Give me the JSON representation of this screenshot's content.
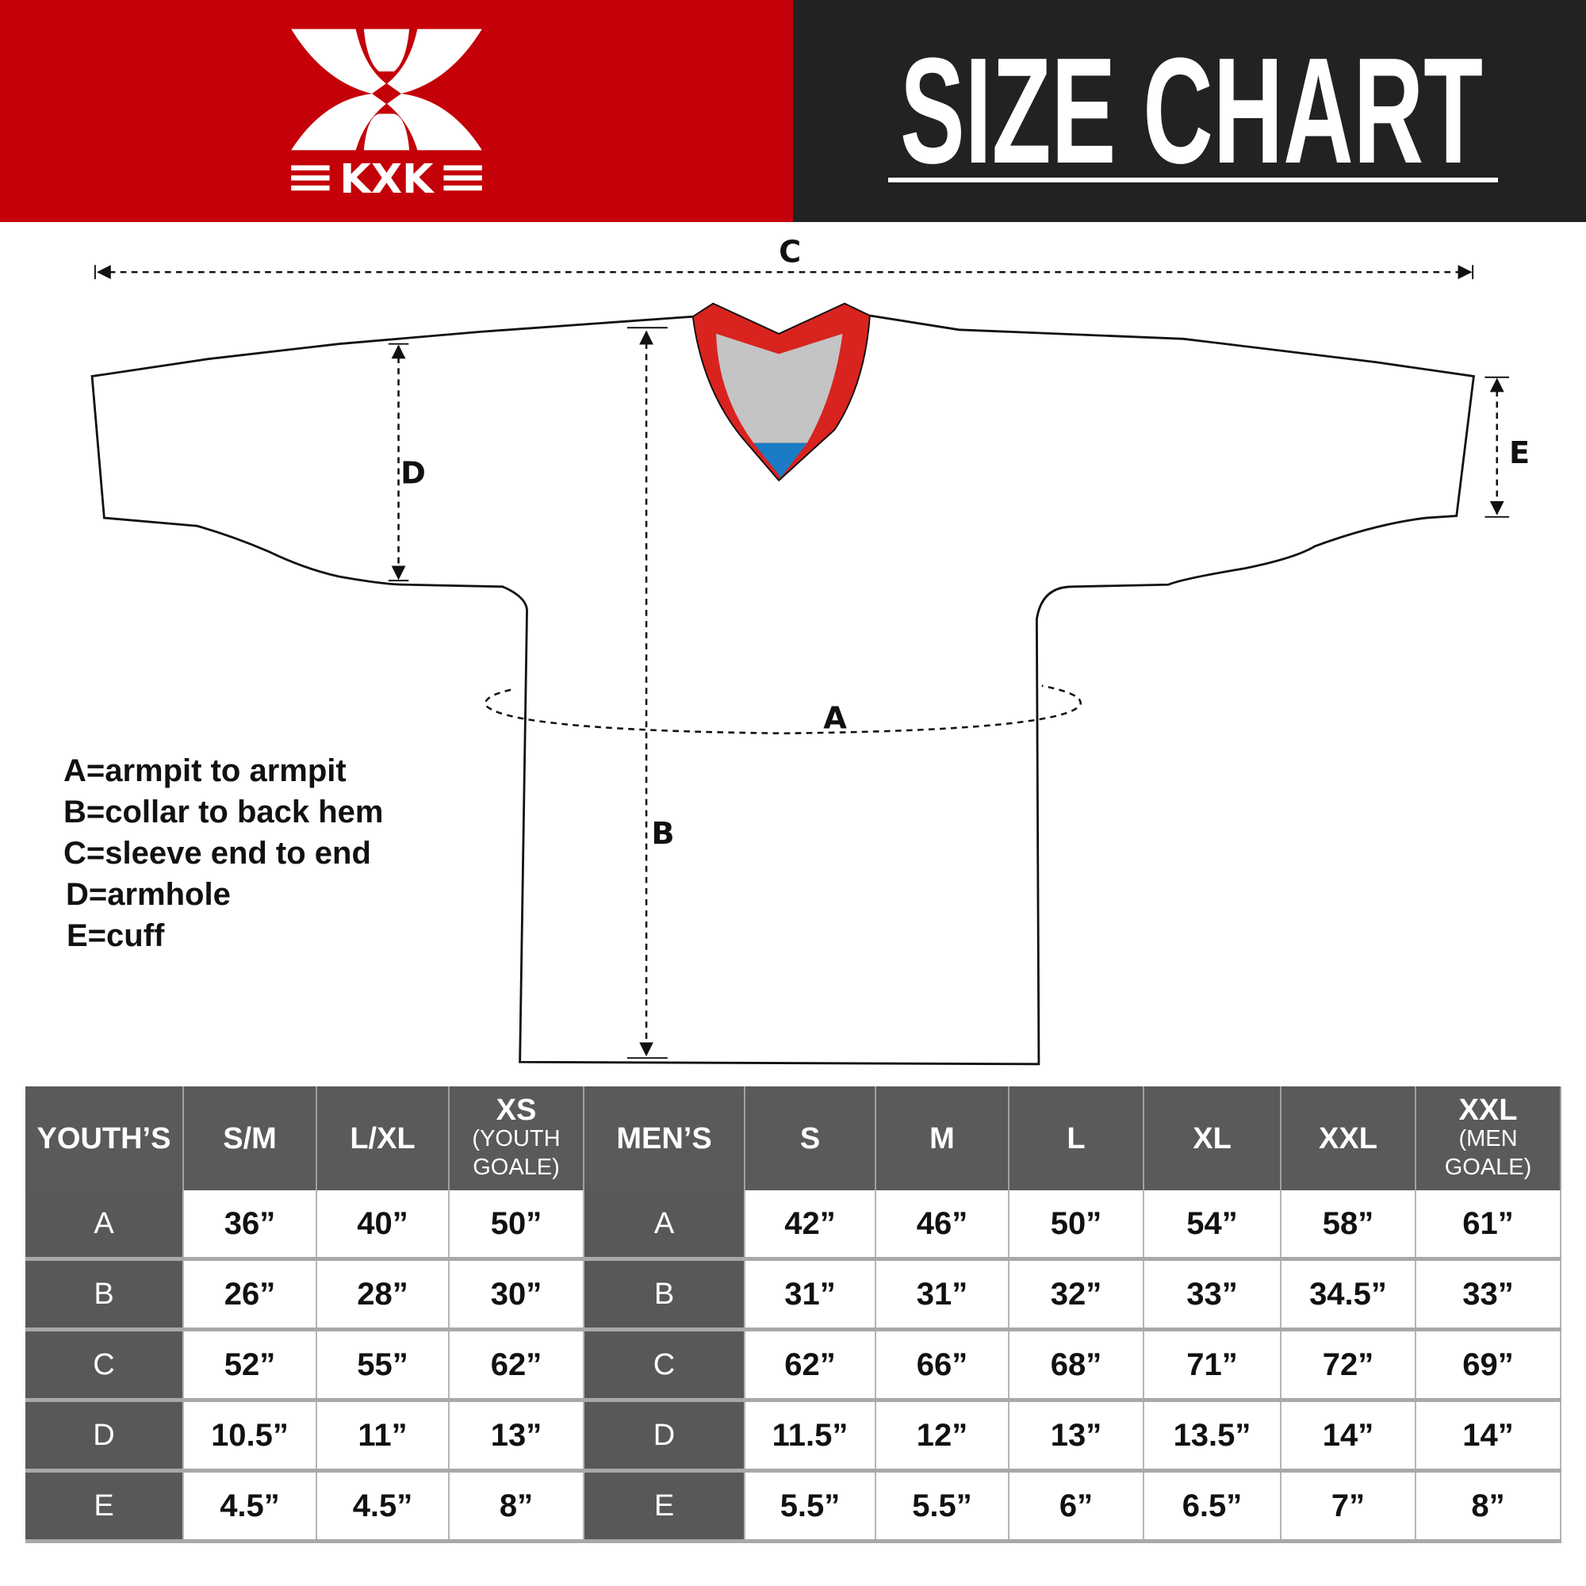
{
  "header": {
    "brand": "KXK",
    "title": "SIZE CHART",
    "colors": {
      "brand_red": "#c40008",
      "header_dark": "#222222",
      "table_header": "#5a5a5c",
      "collar_red": "#d9231f",
      "collar_gray": "#c4c4c4",
      "collar_blue": "#1a7cc4"
    }
  },
  "diagram": {
    "labels": {
      "a": "A",
      "b": "B",
      "c": "C",
      "d": "D",
      "e": "E"
    }
  },
  "legend": [
    "A=armpit to armpit",
    "B=collar to back hem",
    "C=sleeve end to end",
    "D=armhole",
    "E=cuff"
  ],
  "table": {
    "youth_header": "YOUTH’S",
    "men_header": "MEN’S",
    "youth_sizes": [
      {
        "label": "S/M",
        "sub": ""
      },
      {
        "label": "L/XL",
        "sub": ""
      },
      {
        "label": "XS",
        "sub": "(YOUTH GOALE)"
      }
    ],
    "men_sizes": [
      {
        "label": "S",
        "sub": ""
      },
      {
        "label": "M",
        "sub": ""
      },
      {
        "label": "L",
        "sub": ""
      },
      {
        "label": "XL",
        "sub": ""
      },
      {
        "label": "XXL",
        "sub": ""
      },
      {
        "label": "XXL",
        "sub": "(MEN GOALE)"
      }
    ],
    "rows": [
      {
        "key": "A",
        "youth": [
          "36”",
          "40”",
          "50”"
        ],
        "men": [
          "42”",
          "46”",
          "50”",
          "54”",
          "58”",
          "61”"
        ]
      },
      {
        "key": "B",
        "youth": [
          "26”",
          "28”",
          "30”"
        ],
        "men": [
          "31”",
          "31”",
          "32”",
          "33”",
          "34.5”",
          "33”"
        ]
      },
      {
        "key": "C",
        "youth": [
          "52”",
          "55”",
          "62”"
        ],
        "men": [
          "62”",
          "66”",
          "68”",
          "71”",
          "72”",
          "69”"
        ]
      },
      {
        "key": "D",
        "youth": [
          "10.5”",
          "11”",
          "13”"
        ],
        "men": [
          "11.5”",
          "12”",
          "13”",
          "13.5”",
          "14”",
          "14”"
        ]
      },
      {
        "key": "E",
        "youth": [
          "4.5”",
          "4.5”",
          "8”"
        ],
        "men": [
          "5.5”",
          "5.5”",
          "6”",
          "6.5”",
          "7”",
          "8”"
        ]
      }
    ]
  }
}
